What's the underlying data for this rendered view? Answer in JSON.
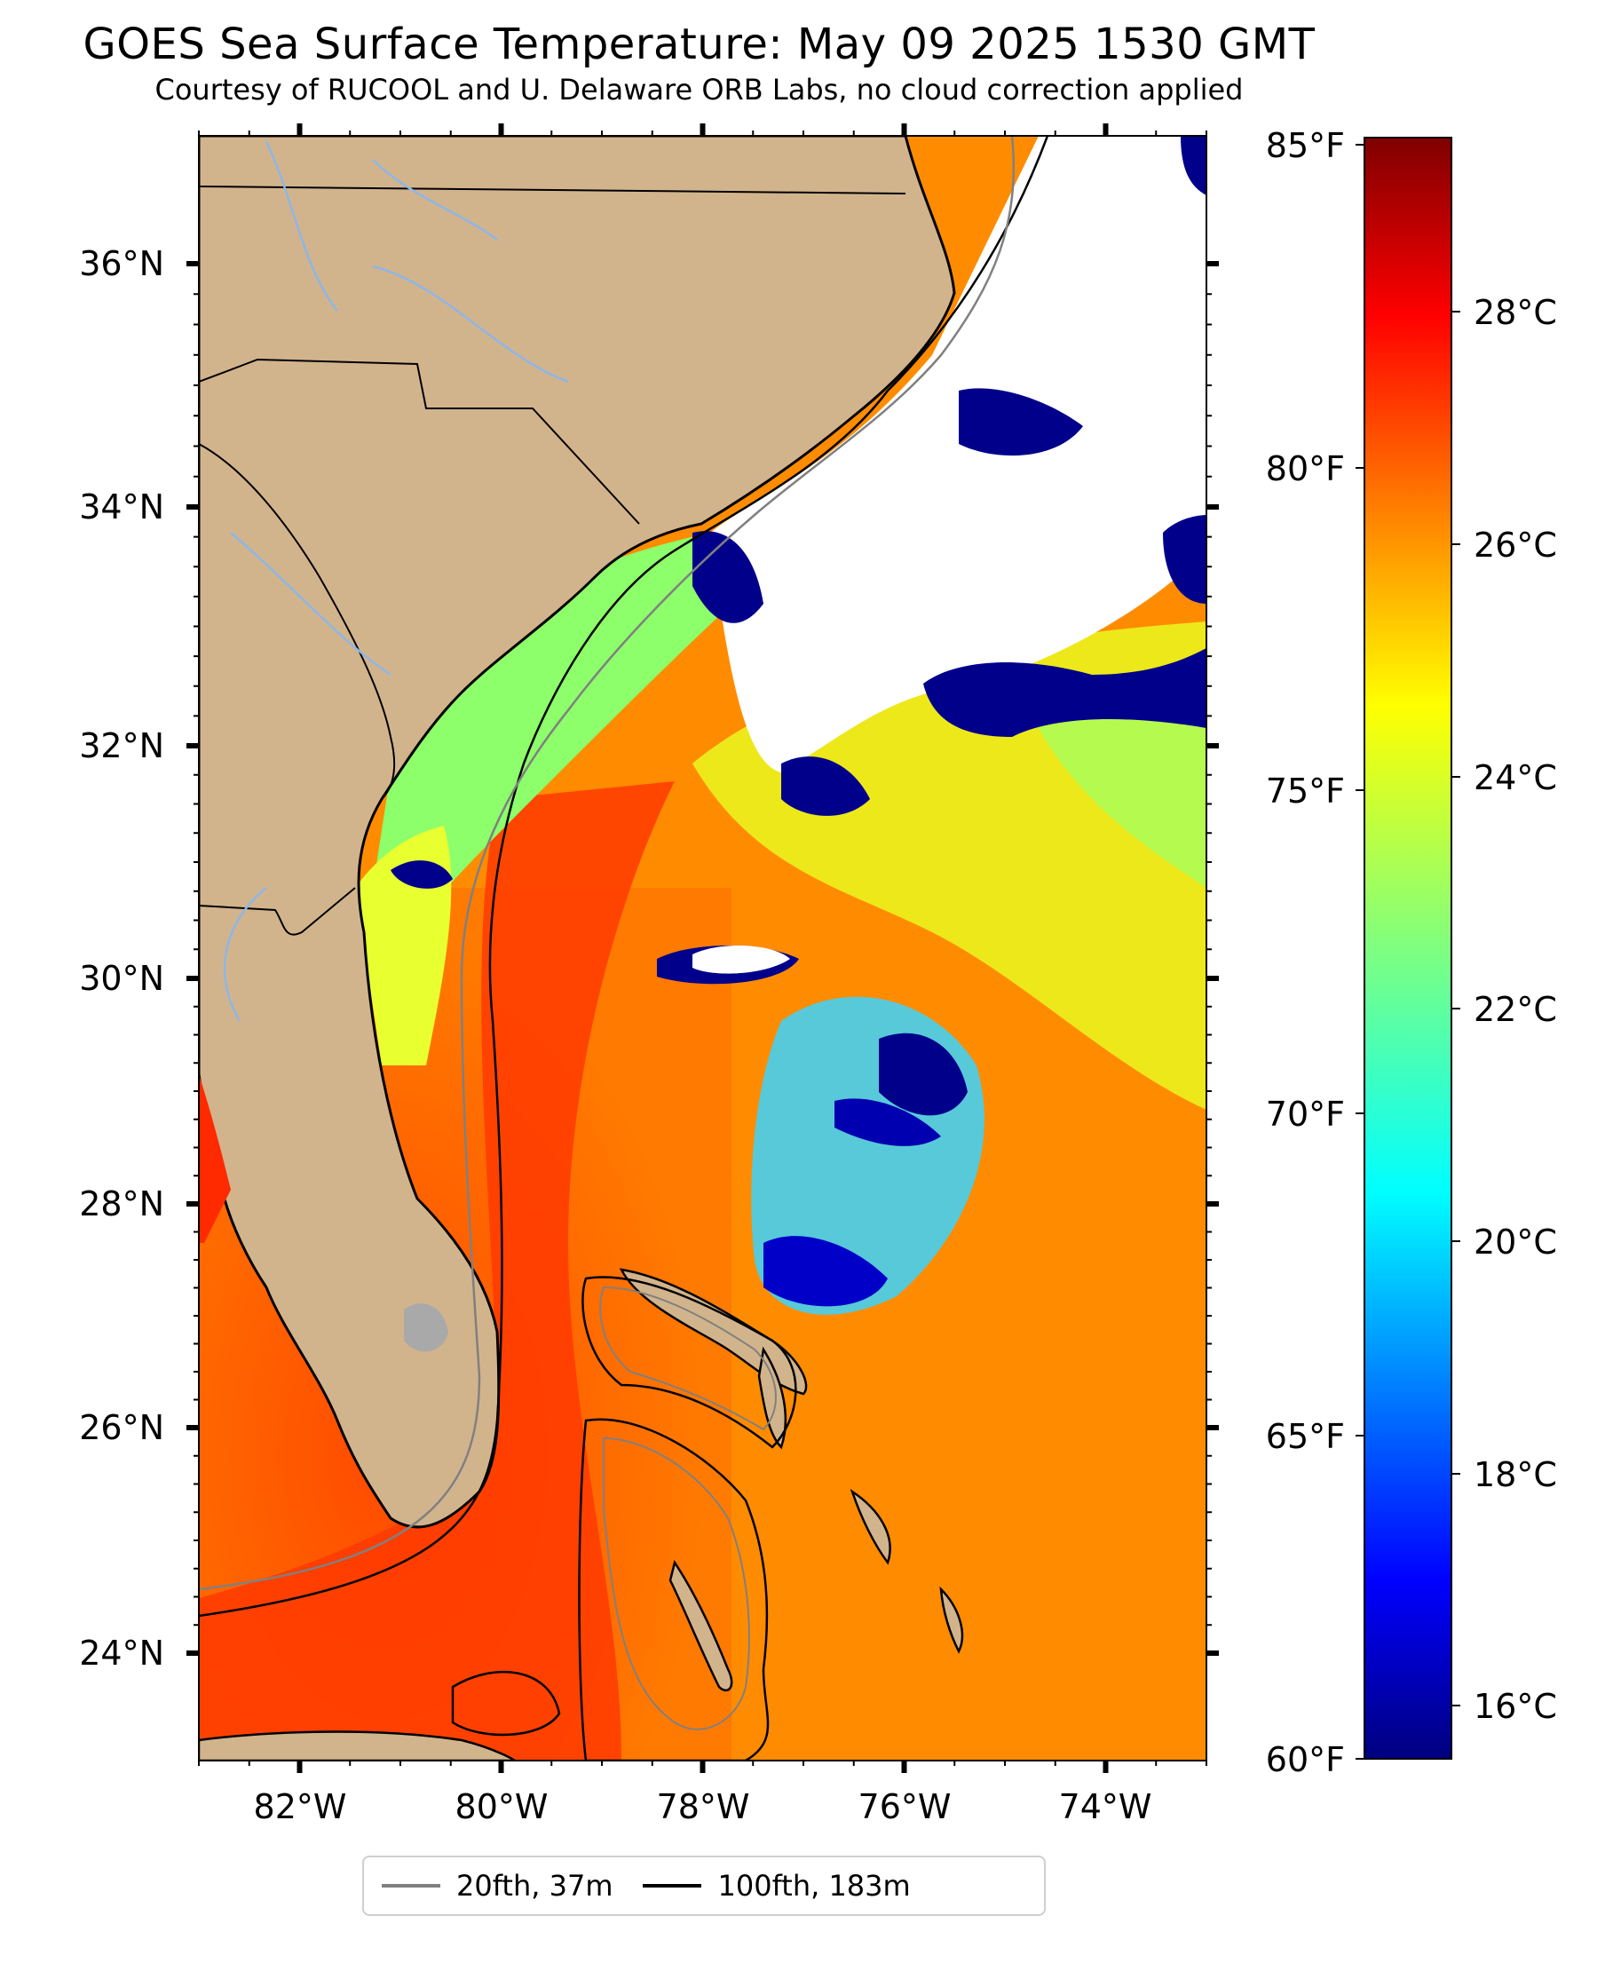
{
  "title": "GOES Sea Surface Temperature: May 09 2025 1530 GMT",
  "subtitle": "Courtesy of RUCOOL and U. Delaware ORB Labs, no cloud correction applied",
  "map": {
    "lon_range": [
      -83,
      -73
    ],
    "lat_range": [
      23,
      37
    ],
    "lon_ticks": [
      "82°W",
      "80°W",
      "78°W",
      "76°W",
      "74°W"
    ],
    "lat_ticks": [
      "24°N",
      "26°N",
      "28°N",
      "30°N",
      "32°N",
      "34°N",
      "36°N"
    ],
    "colors": {
      "land": "#d2b48c",
      "cloud": "#ffffff",
      "cold_mask": "#00008b",
      "gulf_stream": "#ff3b00",
      "shelf_water": "#ffa000",
      "coastal": "#b9ff5a"
    }
  },
  "colorbar": {
    "fahrenheit_ticks": [
      "85°F",
      "80°F",
      "75°F",
      "70°F",
      "65°F",
      "60°F"
    ],
    "celsius_ticks": [
      "28°C",
      "26°C",
      "24°C",
      "22°C",
      "20°C",
      "18°C",
      "16°C"
    ],
    "range_f": [
      60,
      85
    ],
    "colormap": "jet"
  },
  "legend": {
    "items": [
      {
        "label": "20fth, 37m",
        "color": "#808080"
      },
      {
        "label": "100fth, 183m",
        "color": "#000000"
      }
    ]
  }
}
